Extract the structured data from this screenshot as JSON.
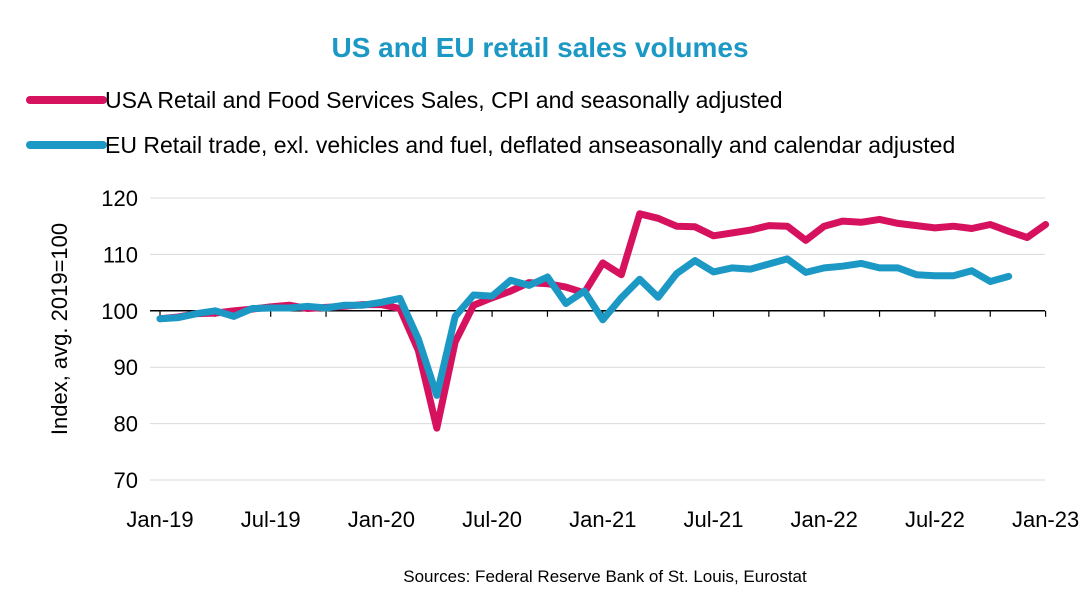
{
  "chart_data": {
    "type": "line",
    "title": "US and EU retail sales volumes",
    "ylabel": "Index, avg. 2019=100",
    "xlabel": "",
    "source": "Sources: Federal Reserve Bank of St. Louis, Eurostat",
    "ylim": [
      70,
      120
    ],
    "yticks": [
      "70",
      "80",
      "90",
      "100",
      "110",
      "120"
    ],
    "xticks": [
      "Jan-19",
      "Jul-19",
      "Jan-20",
      "Jul-20",
      "Jan-21",
      "Jul-21",
      "Jan-22",
      "Jul-22",
      "Jan-23"
    ],
    "x_start": "2019-01",
    "legend_position": "top",
    "grid": true,
    "series": [
      {
        "name": "USA Retail and Food Services Sales, CPI and seasonally adjusted",
        "color": "#D6125F",
        "values": [
          98.6,
          98.9,
          99.5,
          99.6,
          100.0,
          100.3,
          100.7,
          101.0,
          100.4,
          100.6,
          100.8,
          101.1,
          101.1,
          100.4,
          93.0,
          79.2,
          94.5,
          101.0,
          102.3,
          103.5,
          105.0,
          104.8,
          104.2,
          103.2,
          108.5,
          106.4,
          117.2,
          116.4,
          115.0,
          114.9,
          113.3,
          113.8,
          114.3,
          115.1,
          115.0,
          112.5,
          115.0,
          115.9,
          115.7,
          116.2,
          115.5,
          115.1,
          114.7,
          115.0,
          114.6,
          115.3,
          114.1,
          113.0,
          115.3
        ]
      },
      {
        "name": "EU Retail trade, exl. vehicles and fuel, deflated anseasonally and calendar adjusted",
        "color": "#1C98C5",
        "values": [
          98.6,
          98.8,
          99.5,
          100.0,
          99.0,
          100.4,
          100.5,
          100.5,
          100.8,
          100.5,
          101.0,
          101.0,
          101.5,
          102.2,
          95.0,
          85.0,
          99.0,
          102.8,
          102.6,
          105.4,
          104.5,
          106.0,
          101.3,
          103.5,
          98.4,
          102.3,
          105.6,
          102.4,
          106.6,
          108.9,
          106.9,
          107.6,
          107.4,
          108.3,
          109.2,
          106.8,
          107.6,
          107.9,
          108.4,
          107.6,
          107.6,
          106.4,
          106.2,
          106.2,
          107.1,
          105.2,
          106.1
        ]
      }
    ]
  }
}
